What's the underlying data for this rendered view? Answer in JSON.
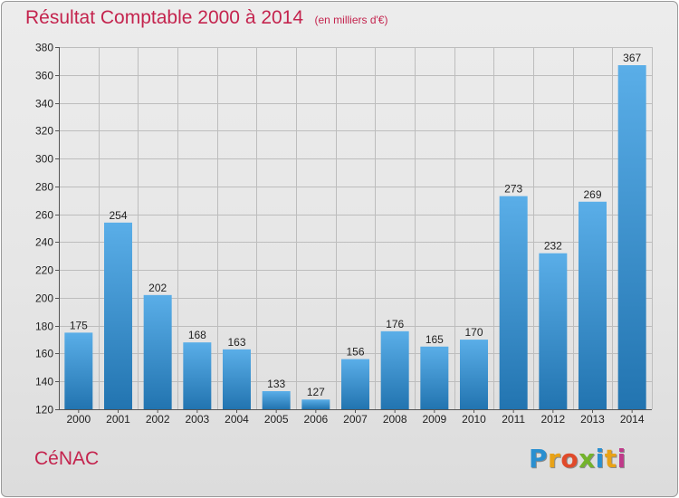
{
  "title": "Résultat Comptable 2000 à 2014",
  "unit_note": "(en milliers d'€)",
  "location": "CéNAC",
  "brand": {
    "text": "Proxiti",
    "letters": [
      "P",
      "r",
      "o",
      "x",
      "i",
      "t",
      "i"
    ],
    "letter_colors": [
      "#2a8fd0",
      "#e8a217",
      "#e04a2a",
      "#73b32b",
      "#2a8fd0",
      "#e8a217",
      "#c03a8a"
    ]
  },
  "colors": {
    "title": "#c4244e",
    "bar_top": "#5aaee8",
    "bar_bottom": "#2274b0",
    "grid": "#bdbdbd",
    "axis_text": "#222222"
  },
  "chart_data": {
    "type": "bar",
    "title": "Résultat Comptable 2000 à 2014",
    "xlabel": "",
    "ylabel": "",
    "ylim": [
      120,
      380
    ],
    "yticks": [
      120,
      140,
      160,
      180,
      200,
      220,
      240,
      260,
      280,
      300,
      320,
      340,
      360,
      380
    ],
    "grid": true,
    "categories": [
      "2000",
      "2001",
      "2002",
      "2003",
      "2004",
      "2005",
      "2006",
      "2007",
      "2008",
      "2009",
      "2010",
      "2011",
      "2012",
      "2013",
      "2014"
    ],
    "values": [
      175,
      254,
      202,
      168,
      163,
      133,
      127,
      156,
      176,
      165,
      170,
      273,
      232,
      269,
      367
    ]
  }
}
